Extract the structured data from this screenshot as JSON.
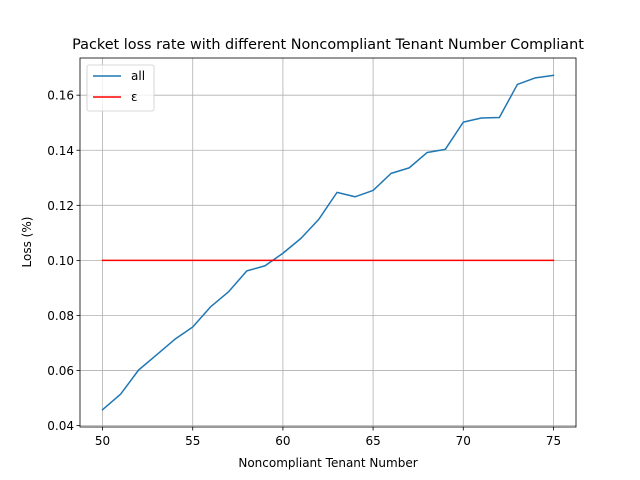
{
  "chart_data": {
    "type": "line",
    "title": "Packet loss rate with different Noncompliant Tenant Number Compliant",
    "xlabel": "Noncompliant Tenant Number",
    "ylabel": "Loss (%)",
    "xlim": [
      48.75,
      76.25
    ],
    "ylim": [
      0.0395,
      0.1735
    ],
    "xticks": [
      50,
      55,
      60,
      65,
      70,
      75
    ],
    "yticks": [
      0.04,
      0.06,
      0.08,
      0.1,
      0.12,
      0.14,
      0.16
    ],
    "ytick_labels": [
      "0.04",
      "0.06",
      "0.08",
      "0.10",
      "0.12",
      "0.14",
      "0.16"
    ],
    "grid": true,
    "legend_position": "upper-left",
    "series": [
      {
        "name": "all",
        "color": "#1f77b4",
        "x": [
          50,
          51,
          52,
          53,
          54,
          55,
          56,
          57,
          58,
          59,
          60,
          61,
          62,
          63,
          64,
          65,
          66,
          67,
          68,
          69,
          70,
          71,
          72,
          73,
          74,
          75
        ],
        "values": [
          0.0458,
          0.0514,
          0.0602,
          0.0657,
          0.0713,
          0.0758,
          0.0832,
          0.0887,
          0.0962,
          0.098,
          0.1026,
          0.108,
          0.115,
          0.1247,
          0.1231,
          0.1254,
          0.1316,
          0.1336,
          0.1392,
          0.1403,
          0.1502,
          0.1517,
          0.1519,
          0.1639,
          0.1663,
          0.1672
        ]
      },
      {
        "name": "ε",
        "color": "#ff0000",
        "x": [
          50,
          75
        ],
        "values": [
          0.1,
          0.1
        ]
      }
    ]
  }
}
